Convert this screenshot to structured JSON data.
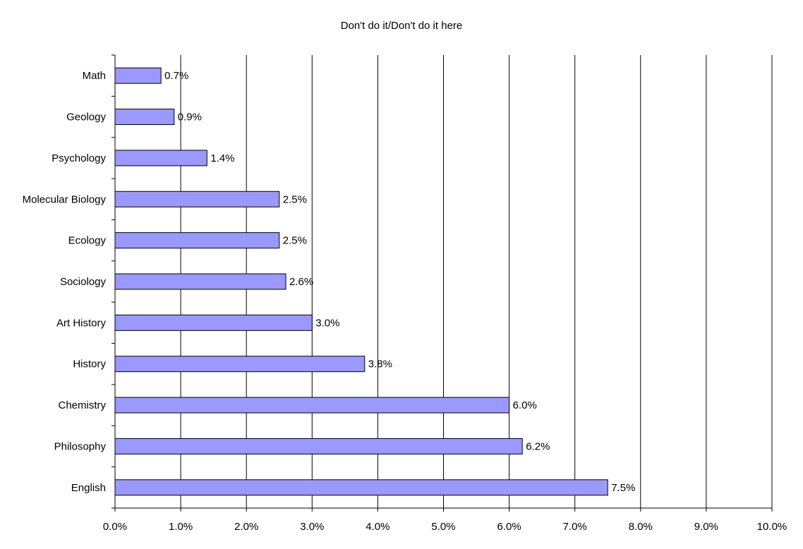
{
  "chart_data": {
    "type": "bar",
    "orientation": "horizontal",
    "title": "Don't do it/Don't do it here",
    "xlabel": "",
    "ylabel": "",
    "categories": [
      "Math",
      "Geology",
      "Psychology",
      "Molecular Biology",
      "Ecology",
      "Sociology",
      "Art History",
      "History",
      "Chemistry",
      "Philosophy",
      "English"
    ],
    "values": [
      0.7,
      0.9,
      1.4,
      2.5,
      2.5,
      2.6,
      3.0,
      3.8,
      6.0,
      6.2,
      7.5
    ],
    "value_labels": [
      "0.7%",
      "0.9%",
      "1.4%",
      "2.5%",
      "2.5%",
      "2.6%",
      "3.0%",
      "3.8%",
      "6.0%",
      "6.2%",
      "7.5%"
    ],
    "xlim": [
      0,
      10
    ],
    "x_ticks": [
      "0.0%",
      "1.0%",
      "2.0%",
      "3.0%",
      "4.0%",
      "5.0%",
      "6.0%",
      "7.0%",
      "8.0%",
      "9.0%",
      "10.0%"
    ],
    "grid": "vertical",
    "legend": "none",
    "bar_color": "#9999ff",
    "bar_border_color": "#000000"
  }
}
